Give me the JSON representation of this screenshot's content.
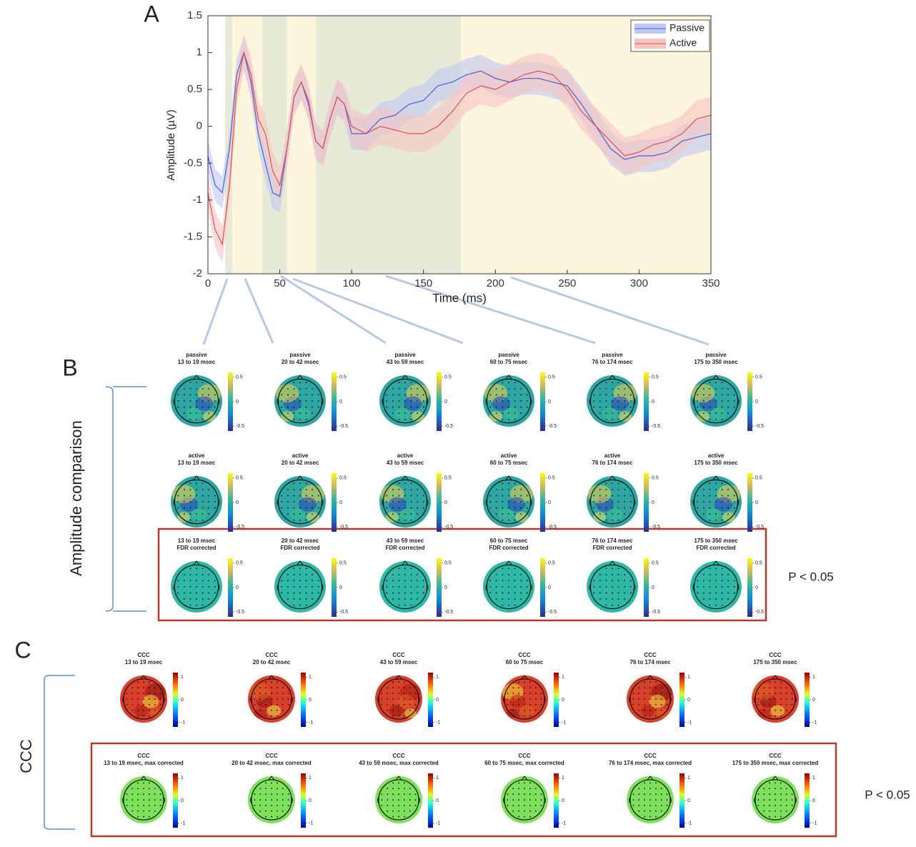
{
  "chart_data": {
    "type": "line",
    "panel_label": "A",
    "x": [
      0,
      5,
      10,
      15,
      20,
      25,
      30,
      35,
      40,
      45,
      50,
      55,
      60,
      65,
      70,
      75,
      80,
      85,
      90,
      95,
      100,
      110,
      120,
      130,
      140,
      150,
      160,
      170,
      180,
      190,
      200,
      210,
      220,
      230,
      240,
      250,
      260,
      270,
      280,
      290,
      300,
      310,
      320,
      330,
      340,
      350
    ],
    "series": [
      {
        "name": "Passive",
        "color": "#4a5fd0",
        "band_color": "#bfc8f4",
        "error": 0.22,
        "values": [
          -0.4,
          -0.8,
          -0.9,
          -0.3,
          0.7,
          1.0,
          0.6,
          -0.1,
          -0.5,
          -0.9,
          -0.95,
          -0.3,
          0.4,
          0.6,
          0.3,
          -0.2,
          -0.3,
          0.1,
          0.4,
          0.3,
          -0.1,
          -0.1,
          0.1,
          0.15,
          0.3,
          0.35,
          0.55,
          0.6,
          0.7,
          0.75,
          0.65,
          0.6,
          0.65,
          0.65,
          0.6,
          0.55,
          0.3,
          0.0,
          -0.3,
          -0.45,
          -0.4,
          -0.4,
          -0.35,
          -0.2,
          -0.15,
          -0.1
        ]
      },
      {
        "name": "Active",
        "color": "#e0504a",
        "band_color": "#f6c3c3",
        "error": 0.25,
        "values": [
          -0.9,
          -1.4,
          -1.6,
          -0.8,
          0.5,
          1.0,
          0.7,
          0.1,
          -0.1,
          -0.6,
          -0.8,
          -0.3,
          0.4,
          0.6,
          0.35,
          -0.2,
          -0.3,
          0.1,
          0.4,
          0.3,
          0.0,
          -0.1,
          0.0,
          -0.05,
          -0.1,
          -0.1,
          0.0,
          0.2,
          0.45,
          0.55,
          0.5,
          0.6,
          0.7,
          0.75,
          0.7,
          0.5,
          0.2,
          0.0,
          -0.2,
          -0.4,
          -0.35,
          -0.25,
          -0.2,
          -0.1,
          0.1,
          0.15
        ]
      }
    ],
    "xlim": [
      0,
      350
    ],
    "xticks": [
      0,
      50,
      100,
      150,
      200,
      250,
      300,
      350
    ],
    "ylim": [
      -2,
      1.5
    ],
    "yticks": [
      -2,
      -1.5,
      -1,
      -0.5,
      0,
      0.5,
      1,
      1.5
    ],
    "xlabel": "Time (ms)",
    "ylabel": "Amplitude (µV)",
    "shaded_regions": [
      {
        "start": 12,
        "end": 17,
        "color": "#e6ead6"
      },
      {
        "start": 17,
        "end": 38,
        "color": "#fdf6dc"
      },
      {
        "start": 38,
        "end": 55,
        "color": "#e6ead6"
      },
      {
        "start": 55,
        "end": 75,
        "color": "#fdf6dc"
      },
      {
        "start": 75,
        "end": 176,
        "color": "#e6ead6"
      },
      {
        "start": 176,
        "end": 350,
        "color": "#fdf6dc"
      }
    ]
  },
  "panel_b": {
    "label": "B",
    "side_label": "Amplitude comparison",
    "significance": "P < 0.05",
    "colorbar_ticks": [
      0.5,
      0,
      -0.5
    ],
    "rows": [
      {
        "fill": "#2ea7a2",
        "titles": [
          [
            "passive",
            "13 to 19 msec"
          ],
          [
            "passive",
            "20 to 42 msec"
          ],
          [
            "passive",
            "43 to 59 msec"
          ],
          [
            "passive",
            "60 to 75 msec"
          ],
          [
            "passive",
            "76 to 174 msec"
          ],
          [
            "passive",
            "175 to 350 msec"
          ]
        ]
      },
      {
        "fill": "#2ea7a2",
        "titles": [
          [
            "active",
            "13 to 19 msec"
          ],
          [
            "active",
            "20 to 42 msec"
          ],
          [
            "active",
            "43 to 59 msec"
          ],
          [
            "active",
            "60 to 75 msec"
          ],
          [
            "active",
            "76 to 174 msec"
          ],
          [
            "active",
            "175 to 350 msec"
          ]
        ]
      },
      {
        "fill": "#2fb8a6",
        "titles": [
          [
            "13 to 19 msec",
            "FDR corrected"
          ],
          [
            "20 to 42 msec",
            "FDR corrected"
          ],
          [
            "43 to 59 msec",
            "FDR corrected"
          ],
          [
            "60 to 75 msec",
            "FDR corrected"
          ],
          [
            "76 to 174 msec",
            "FDR corrected"
          ],
          [
            "175 to 350 msec",
            "FDR corrected"
          ]
        ]
      }
    ]
  },
  "panel_c": {
    "label": "C",
    "side_label": "CCC",
    "significance": "P < 0.05",
    "colorbar_ticks": [
      1,
      0,
      -1
    ],
    "rows": [
      {
        "fill": "#d9402b",
        "titles": [
          [
            "CCC",
            "13 to 19 msec"
          ],
          [
            "CCC",
            "20 to 42 msec"
          ],
          [
            "CCC",
            "43 to 59 msec"
          ],
          [
            "CCC",
            "60 to 75 msec"
          ],
          [
            "CCC",
            "76 to 174 msec"
          ],
          [
            "CCC",
            "175 to 350 msec"
          ]
        ]
      },
      {
        "fill": "#7ee05c",
        "titles": [
          [
            "CCC",
            "13 to 19 msec, max corrected"
          ],
          [
            "CCC",
            "20 to 42 msec, max corrected"
          ],
          [
            "CCC",
            "43 to 59 msec, max corrected"
          ],
          [
            "CCC",
            "60 to 75 msec, max corrected"
          ],
          [
            "CCC",
            "76 to 174 msec, max corrected"
          ],
          [
            "CCC",
            "175 to 350 msec, max corrected"
          ]
        ]
      }
    ]
  }
}
